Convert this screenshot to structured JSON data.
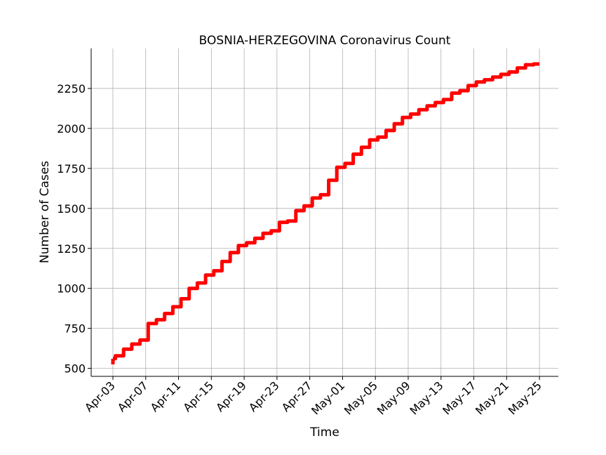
{
  "chart_data": {
    "type": "line",
    "title": "BOSNIA-HERZEGOVINA Coronavirus Count",
    "xlabel": "Time",
    "ylabel": "Number of Cases",
    "x_ticks": [
      "Apr-03",
      "Apr-07",
      "Apr-11",
      "Apr-15",
      "Apr-19",
      "Apr-23",
      "Apr-27",
      "May-01",
      "May-05",
      "May-09",
      "May-13",
      "May-17",
      "May-21",
      "May-25"
    ],
    "y_ticks": [
      500,
      750,
      1000,
      1250,
      1500,
      1750,
      2000,
      2250
    ],
    "ylim": [
      450,
      2500
    ],
    "xlim_days": [
      -2.65,
      54.3
    ],
    "grid": true,
    "colors": {
      "line": "#ff0000",
      "grid": "#b0b0b0",
      "axis": "#000000"
    },
    "series": [
      {
        "x": [
          "Apr-03",
          "Apr-04",
          "Apr-05",
          "Apr-06",
          "Apr-07",
          "Apr-08",
          "Apr-09",
          "Apr-10",
          "Apr-11",
          "Apr-12",
          "Apr-13",
          "Apr-14",
          "Apr-15",
          "Apr-16",
          "Apr-17",
          "Apr-18",
          "Apr-19",
          "Apr-20",
          "Apr-21",
          "Apr-22",
          "Apr-23",
          "Apr-24",
          "Apr-25",
          "Apr-26",
          "Apr-27",
          "Apr-28",
          "Apr-29",
          "Apr-30",
          "May-01",
          "May-02",
          "May-03",
          "May-04",
          "May-05",
          "May-06",
          "May-07",
          "May-08",
          "May-09",
          "May-10",
          "May-11",
          "May-12",
          "May-13",
          "May-14",
          "May-15",
          "May-16",
          "May-17",
          "May-18",
          "May-19",
          "May-20",
          "May-21",
          "May-22",
          "May-23",
          "May-24",
          "May-25"
        ],
        "values": [
          560,
          578,
          620,
          652,
          677,
          780,
          804,
          843,
          885,
          935,
          1000,
          1034,
          1083,
          1110,
          1168,
          1224,
          1268,
          1285,
          1313,
          1344,
          1360,
          1413,
          1421,
          1486,
          1516,
          1565,
          1585,
          1676,
          1757,
          1781,
          1839,
          1882,
          1928,
          1946,
          1987,
          2029,
          2069,
          2090,
          2117,
          2141,
          2162,
          2181,
          2221,
          2236,
          2268,
          2290,
          2304,
          2321,
          2338,
          2353,
          2378,
          2398,
          2403
        ]
      }
    ]
  }
}
